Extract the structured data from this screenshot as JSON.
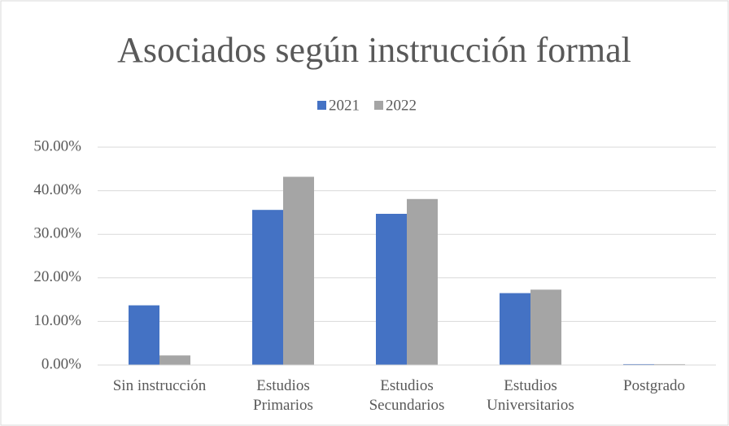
{
  "chart_data": {
    "type": "bar",
    "title": "Asociados según instrucción formal",
    "categories": [
      "Sin instrucción",
      "Estudios Primarios",
      "Estudios Secundarios",
      "Estudios Universitarios",
      "Postgrado"
    ],
    "series": [
      {
        "name": "2021",
        "color": "#4472c4",
        "values": [
          13.7,
          35.6,
          34.7,
          16.5,
          0.2
        ]
      },
      {
        "name": "2022",
        "color": "#a5a5a5",
        "values": [
          2.2,
          43.2,
          38.1,
          17.3,
          0.2
        ]
      }
    ],
    "ylim": [
      0,
      50
    ],
    "yticks": [
      {
        "value": 0,
        "label": "0.00%"
      },
      {
        "value": 10,
        "label": "10.00%"
      },
      {
        "value": 20,
        "label": "20.00%"
      },
      {
        "value": 30,
        "label": "30.00%"
      },
      {
        "value": 40,
        "label": "40.00%"
      },
      {
        "value": 50,
        "label": "50.00%"
      }
    ],
    "grid": true,
    "legend": "top"
  }
}
